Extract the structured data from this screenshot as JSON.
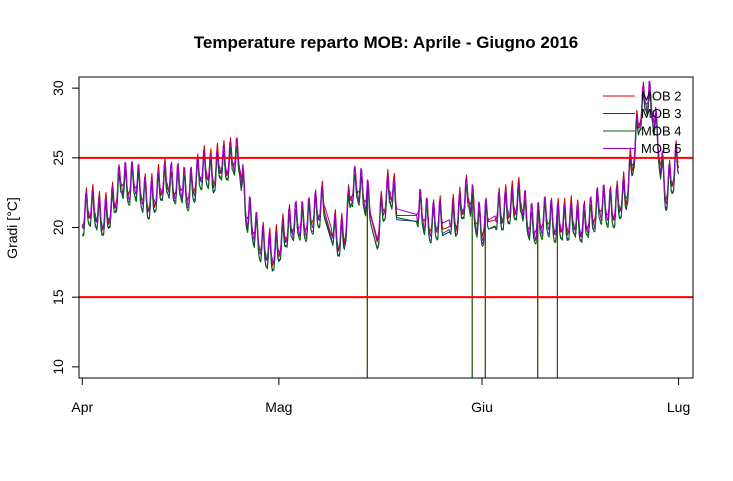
{
  "chart_data": {
    "type": "line",
    "title": "Temperature reparto MOB: Aprile - Giugno 2016",
    "xlabel": "",
    "ylabel": "Gradi [°C]",
    "x_domain": [
      "2016-04-01",
      "2016-07-01"
    ],
    "xlim": [
      -0.5,
      93.2
    ],
    "ylim": [
      9.2,
      30.8
    ],
    "x_ticks": [
      {
        "date": "2016-04-01",
        "label": "Apr"
      },
      {
        "date": "2016-05-01",
        "label": "Mag"
      },
      {
        "date": "2016-06-01",
        "label": "Giu"
      },
      {
        "date": "2016-07-01",
        "label": "Lug"
      }
    ],
    "y_ticks": [
      10,
      15,
      20,
      25,
      30
    ],
    "grid": false,
    "legend_position": "top-right",
    "reference_lines": [
      {
        "y": 25,
        "color": "#ff0000"
      },
      {
        "y": 15,
        "color": "#ff0000"
      }
    ],
    "series": [
      {
        "name": "MOB 2",
        "color": "#cc0000",
        "offset": 0.25
      },
      {
        "name": "MOB 3",
        "color": "#1f1fbf",
        "offset": -0.3
      },
      {
        "name": "MOB 4",
        "color": "#006400",
        "offset": -0.35
      },
      {
        "name": "MOB 5",
        "color": "#9900cc",
        "offset": 0.2
      }
    ],
    "note_daily_mean_series": [
      [
        "2016-04-01",
        20.6
      ],
      [
        "2016-04-02",
        21.4
      ],
      [
        "2016-04-03",
        21.2
      ],
      [
        "2016-04-04",
        20.5
      ],
      [
        "2016-04-05",
        20.9
      ],
      [
        "2016-04-06",
        22.0
      ],
      [
        "2016-04-07",
        23.5
      ],
      [
        "2016-04-08",
        22.8
      ],
      [
        "2016-04-09",
        23.4
      ],
      [
        "2016-04-10",
        22.6
      ],
      [
        "2016-04-11",
        21.8
      ],
      [
        "2016-04-12",
        22.2
      ],
      [
        "2016-04-13",
        23.0
      ],
      [
        "2016-04-14",
        23.4
      ],
      [
        "2016-04-15",
        22.8
      ],
      [
        "2016-04-16",
        23.2
      ],
      [
        "2016-04-17",
        22.4
      ],
      [
        "2016-04-18",
        23.0
      ],
      [
        "2016-04-19",
        24.0
      ],
      [
        "2016-04-20",
        24.2
      ],
      [
        "2016-04-21",
        23.6
      ],
      [
        "2016-04-22",
        24.6
      ],
      [
        "2016-04-23",
        24.4
      ],
      [
        "2016-04-24",
        25.0
      ],
      [
        "2016-04-25",
        24.8
      ],
      [
        "2016-04-26",
        21.2
      ],
      [
        "2016-04-27",
        20.2
      ],
      [
        "2016-04-28",
        19.0
      ],
      [
        "2016-04-29",
        18.4
      ],
      [
        "2016-04-30",
        18.0
      ],
      [
        "2016-05-01",
        18.6
      ],
      [
        "2016-05-02",
        19.6
      ],
      [
        "2016-05-03",
        20.2
      ],
      [
        "2016-05-04",
        20.4
      ],
      [
        "2016-05-05",
        20.2
      ],
      [
        "2016-05-06",
        20.8
      ],
      [
        "2016-05-07",
        21.2
      ],
      [
        "2016-05-08",
        21.8
      ],
      [
        "2016-05-09",
        20.2
      ],
      [
        "2016-05-10",
        19.0
      ],
      [
        "2016-05-11",
        19.4
      ],
      [
        "2016-05-12",
        22.6
      ],
      [
        "2016-05-13",
        23.0
      ],
      [
        "2016-05-14",
        22.4
      ],
      [
        "2016-05-15",
        21.4
      ],
      [
        "2016-05-16",
        19.6
      ],
      [
        "2016-05-17",
        21.6
      ],
      [
        "2016-05-18",
        22.8
      ],
      [
        "2016-05-19",
        21.6
      ],
      [
        "2016-05-20",
        21.0
      ],
      [
        "2016-05-21",
        21.6
      ],
      [
        "2016-05-22",
        21.4
      ],
      [
        "2016-05-23",
        21.0
      ],
      [
        "2016-05-24",
        20.2
      ],
      [
        "2016-05-25",
        20.4
      ],
      [
        "2016-05-26",
        20.6
      ],
      [
        "2016-05-27",
        20.8
      ],
      [
        "2016-05-28",
        20.4
      ],
      [
        "2016-05-29",
        21.6
      ],
      [
        "2016-05-30",
        22.4
      ],
      [
        "2016-05-31",
        20.8
      ],
      [
        "2016-06-01",
        19.8
      ],
      [
        "2016-06-02",
        21.0
      ],
      [
        "2016-06-03",
        21.2
      ],
      [
        "2016-06-04",
        21.0
      ],
      [
        "2016-06-05",
        21.4
      ],
      [
        "2016-06-06",
        21.6
      ],
      [
        "2016-06-07",
        22.0
      ],
      [
        "2016-06-08",
        20.4
      ],
      [
        "2016-06-09",
        20.0
      ],
      [
        "2016-06-10",
        20.4
      ],
      [
        "2016-06-11",
        20.8
      ],
      [
        "2016-06-12",
        20.2
      ],
      [
        "2016-06-13",
        20.4
      ],
      [
        "2016-06-14",
        20.2
      ],
      [
        "2016-06-15",
        20.6
      ],
      [
        "2016-06-16",
        20.0
      ],
      [
        "2016-06-17",
        20.4
      ],
      [
        "2016-06-18",
        20.8
      ],
      [
        "2016-06-19",
        21.6
      ],
      [
        "2016-06-20",
        21.4
      ],
      [
        "2016-06-21",
        21.2
      ],
      [
        "2016-06-22",
        21.8
      ],
      [
        "2016-06-23",
        22.4
      ],
      [
        "2016-06-24",
        24.8
      ],
      [
        "2016-06-25",
        27.8
      ],
      [
        "2016-06-26",
        29.4
      ],
      [
        "2016-06-27",
        28.6
      ],
      [
        "2016-06-28",
        25.6
      ],
      [
        "2016-06-29",
        22.4
      ],
      [
        "2016-06-30",
        23.6
      ],
      [
        "2016-07-01",
        25.0
      ]
    ],
    "gaps": [
      [
        "2016-05-08",
        "2016-05-09"
      ],
      [
        "2016-05-15",
        "2016-05-16"
      ],
      [
        "2016-05-19",
        "2016-05-22"
      ],
      [
        "2016-05-26",
        "2016-05-27"
      ],
      [
        "2016-06-02",
        "2016-06-03"
      ]
    ],
    "drops": [
      {
        "date": "2016-05-14",
        "to": 9.2
      },
      {
        "date": "2016-05-30",
        "to": 9.2
      },
      {
        "date": "2016-06-01",
        "to": 9.2
      },
      {
        "date": "2016-06-01",
        "to": 9.2
      },
      {
        "date": "2016-06-09",
        "to": 9.2
      },
      {
        "date": "2016-06-12",
        "to": 9.2
      }
    ]
  }
}
